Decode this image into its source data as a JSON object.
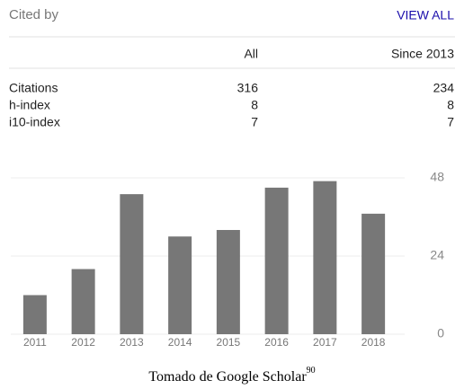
{
  "header": {
    "title": "Cited by",
    "link": "VIEW ALL"
  },
  "table": {
    "columns": [
      "All",
      "Since 2013"
    ],
    "rows": [
      [
        "Citations",
        316,
        234
      ],
      [
        "h-index",
        8,
        8
      ],
      [
        "i10-index",
        7,
        7
      ]
    ]
  },
  "chart_data": {
    "type": "bar",
    "categories": [
      "2011",
      "2012",
      "2013",
      "2014",
      "2015",
      "2016",
      "2017",
      "2018"
    ],
    "values": [
      12,
      20,
      43,
      30,
      32,
      45,
      47,
      37
    ],
    "color": "#777777",
    "ylim": [
      0,
      48
    ],
    "yticks": [
      0,
      24,
      48
    ],
    "grid": true
  },
  "caption": {
    "text": "Tomado de Google Scholar",
    "ref": "90"
  }
}
